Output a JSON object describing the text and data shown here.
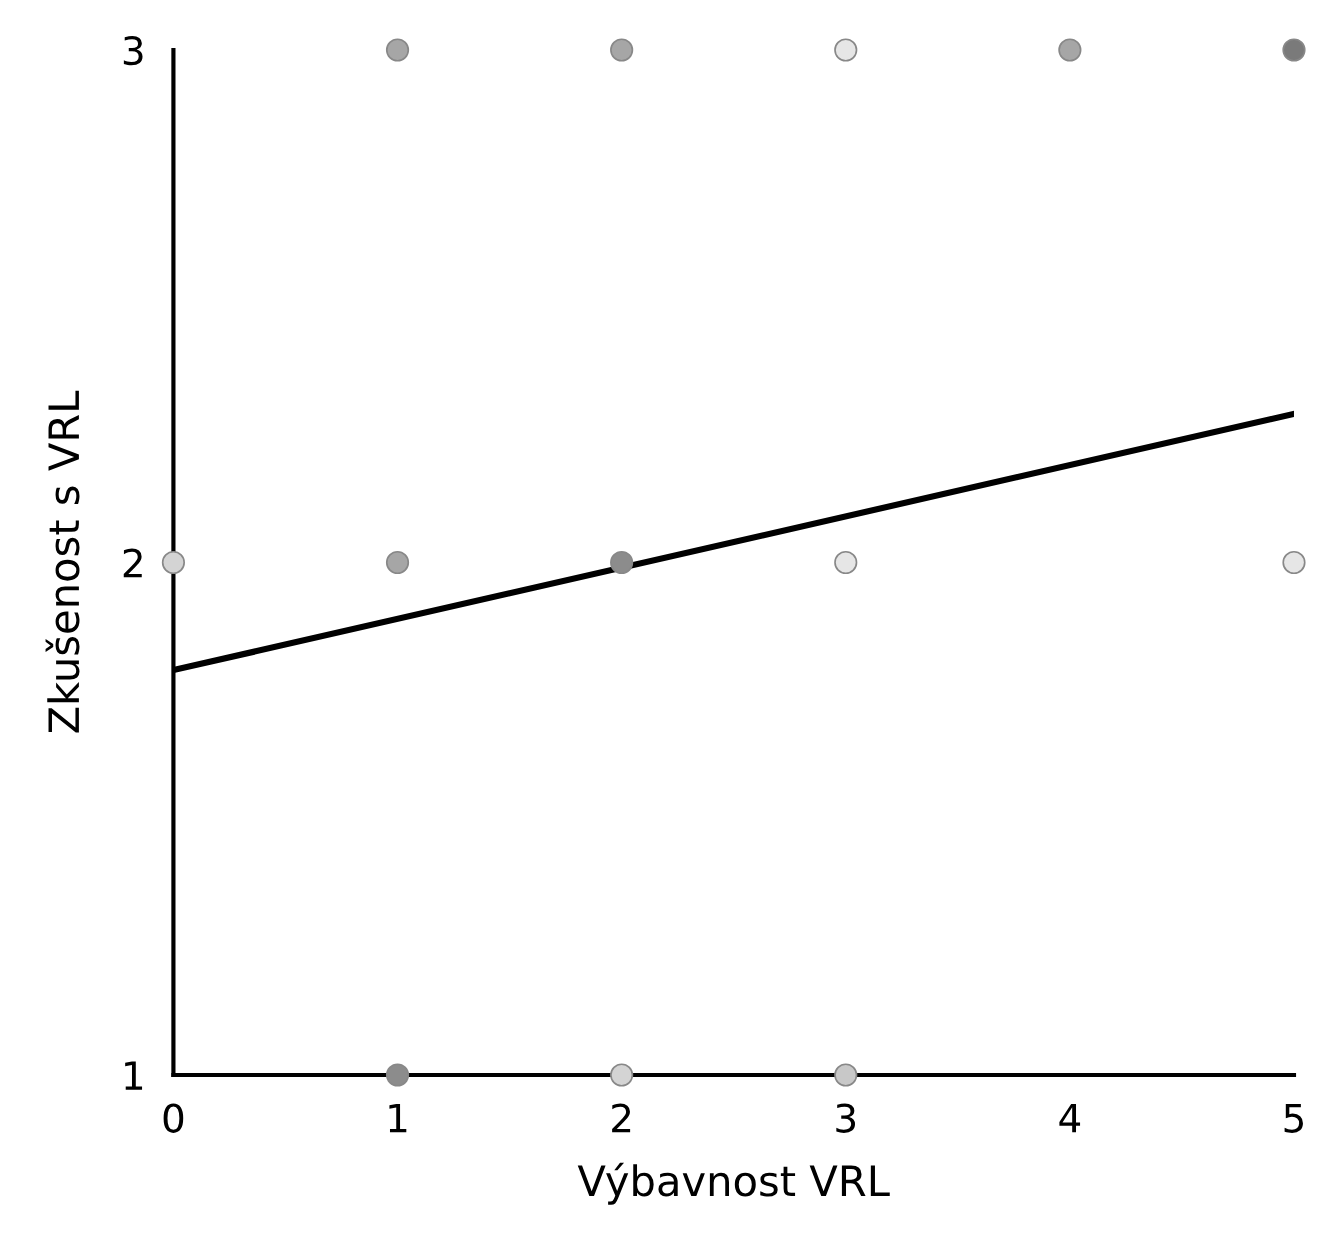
{
  "chart_data": {
    "type": "scatter",
    "xlabel": "Výbavnost VRL",
    "ylabel": "Zkušenost s VRL",
    "xlim": [
      0,
      5
    ],
    "ylim": [
      1,
      3
    ],
    "xticks": [
      0,
      1,
      2,
      3,
      4,
      5
    ],
    "yticks": [
      1,
      2,
      3
    ],
    "grid": false,
    "series": [
      {
        "marker": "circle",
        "x": [
          1,
          2,
          3,
          4,
          5,
          0,
          1,
          2,
          3,
          5,
          1,
          2,
          3
        ],
        "values": [
          3,
          3,
          3,
          3,
          3,
          2,
          2,
          2,
          2,
          2,
          1,
          1,
          1
        ],
        "colors": [
          "#a6a6a6",
          "#a6a6a6",
          "#e6e6e6",
          "#a6a6a6",
          "#7a7a7a",
          "#d4d4d4",
          "#a6a6a6",
          "#8c8c8c",
          "#e6e6e6",
          "#e6e6e6",
          "#8c8c8c",
          "#d4d4d4",
          "#c8c8c8"
        ]
      },
      {
        "type": "line",
        "x": [
          0,
          5
        ],
        "values": [
          1.79,
          2.29
        ],
        "color": "#000000",
        "marker": "none"
      }
    ]
  }
}
